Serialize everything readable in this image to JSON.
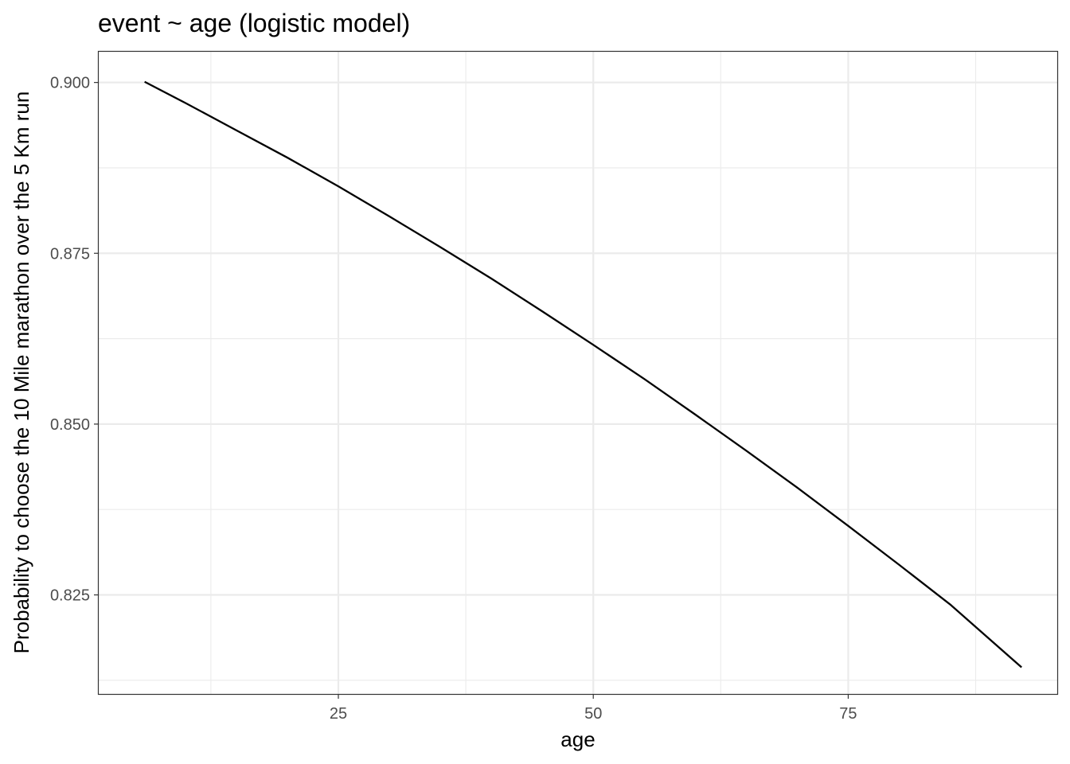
{
  "chart_data": {
    "type": "line",
    "title": "event ~ age (logistic model)",
    "xlabel": "age",
    "ylabel": "Probability to choose the 10 Mile marathon over the 5 Km run",
    "xlim": [
      1.5,
      95.5
    ],
    "ylim": [
      0.8105,
      0.9045
    ],
    "x_ticks": [
      25,
      50,
      75
    ],
    "x_tick_labels": [
      "25",
      "50",
      "75"
    ],
    "y_ticks": [
      0.825,
      0.85,
      0.875,
      0.9
    ],
    "y_tick_labels": [
      "0.825",
      "0.850",
      "0.875",
      "0.900"
    ],
    "grid": true,
    "legend": "none",
    "series": [
      {
        "color": "#000000",
        "x": [
          6,
          10,
          15,
          20,
          25,
          30,
          35,
          40,
          45,
          50,
          55,
          60,
          65,
          70,
          75,
          80,
          85,
          92
        ],
        "y": [
          0.9001,
          0.897,
          0.893,
          0.889,
          0.8848,
          0.8804,
          0.8759,
          0.8713,
          0.8665,
          0.8616,
          0.8566,
          0.8514,
          0.8461,
          0.8407,
          0.8351,
          0.8294,
          0.8236,
          0.8144
        ]
      }
    ]
  }
}
